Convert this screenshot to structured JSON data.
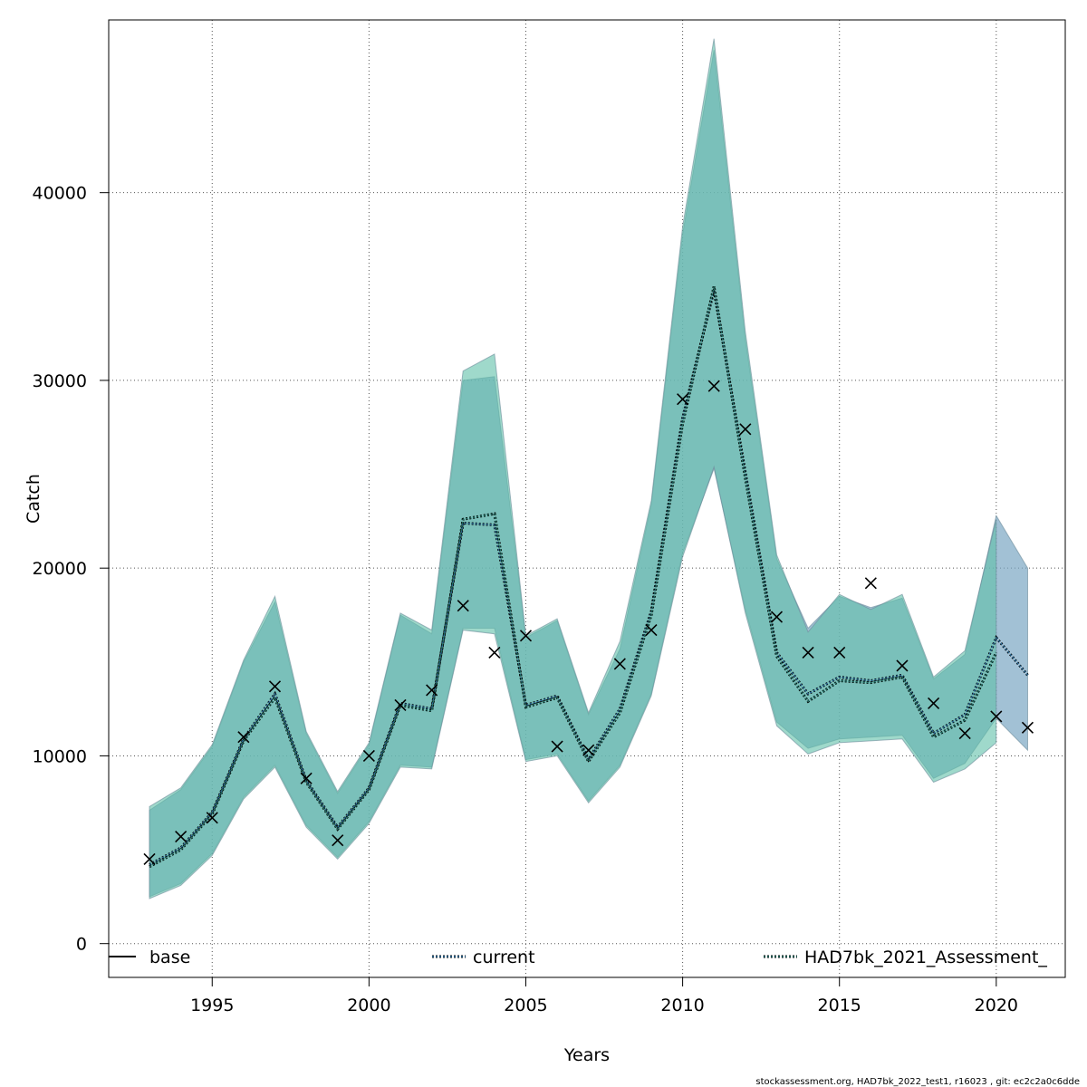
{
  "chart_data": {
    "type": "line",
    "xlabel": "Years",
    "ylabel": "Catch",
    "xlim": [
      1991.7,
      2022.2
    ],
    "ylim": [
      -1800,
      49200
    ],
    "x_ticks": [
      1995,
      2000,
      2005,
      2010,
      2015,
      2020
    ],
    "y_ticks": [
      0,
      10000,
      20000,
      30000,
      40000
    ],
    "grid": true,
    "legend_placement": "bottom",
    "colors": {
      "base": "#000000",
      "current": "#2a6e9c",
      "assessment": "#1f6f64",
      "band_current": "#7ba6c3",
      "band_assessment": "#5fbfa8",
      "band_overlap": "#72b5b5",
      "observed": "#000000"
    },
    "series": [
      {
        "name": "current",
        "x": [
          1993,
          1994,
          1995,
          1996,
          1997,
          1998,
          1999,
          2000,
          2001,
          2002,
          2003,
          2004,
          2005,
          2006,
          2007,
          2008,
          2009,
          2010,
          2011,
          2012,
          2013,
          2014,
          2015,
          2016,
          2017,
          2018,
          2019,
          2020,
          2021
        ],
        "values": [
          4200,
          5100,
          7000,
          10900,
          13300,
          8700,
          6200,
          8300,
          12800,
          12500,
          22400,
          22300,
          12700,
          13200,
          9800,
          12500,
          17700,
          28000,
          34800,
          25100,
          15500,
          13300,
          14200,
          14000,
          14300,
          11200,
          12200,
          16300,
          14300
        ],
        "lower": [
          2500,
          3200,
          4800,
          7800,
          9500,
          6300,
          4600,
          6500,
          9500,
          9400,
          16800,
          16800,
          9800,
          10100,
          7600,
          9500,
          13300,
          20800,
          25300,
          17800,
          11800,
          10400,
          10900,
          11000,
          11100,
          8800,
          9600,
          12000,
          10300
        ],
        "upper": [
          7100,
          8200,
          10500,
          15000,
          18200,
          11200,
          8000,
          10600,
          17500,
          16500,
          30000,
          30200,
          16300,
          17200,
          12200,
          15700,
          23400,
          37800,
          47600,
          32200,
          20500,
          16800,
          18500,
          17900,
          18400,
          14100,
          15400,
          22800,
          20000
        ]
      },
      {
        "name": "HAD7bk_2021_Assessment_",
        "x": [
          1993,
          1994,
          1995,
          1996,
          1997,
          1998,
          1999,
          2000,
          2001,
          2002,
          2003,
          2004,
          2005,
          2006,
          2007,
          2008,
          2009,
          2010,
          2011,
          2012,
          2013,
          2014,
          2015,
          2016,
          2017,
          2018,
          2019,
          2020
        ],
        "values": [
          4100,
          5000,
          6900,
          10800,
          13100,
          8600,
          6100,
          8200,
          12700,
          12400,
          22600,
          22900,
          12600,
          13100,
          9700,
          12300,
          17500,
          27700,
          35000,
          24800,
          15300,
          12900,
          14000,
          13900,
          14200,
          11000,
          11900,
          15500
        ],
        "lower": [
          2400,
          3100,
          4700,
          7700,
          9400,
          6200,
          4500,
          6400,
          9400,
          9300,
          16700,
          16500,
          9700,
          10000,
          7500,
          9400,
          13200,
          20600,
          25400,
          17600,
          11600,
          10100,
          10700,
          10800,
          10900,
          8600,
          9300,
          10700
        ],
        "upper": [
          7300,
          8300,
          10600,
          15100,
          18500,
          11300,
          8100,
          10700,
          17600,
          16700,
          30500,
          31400,
          16400,
          17300,
          12300,
          16100,
          23600,
          38200,
          48200,
          32600,
          20700,
          16600,
          18600,
          17800,
          18600,
          14200,
          15600,
          22600
        ]
      }
    ],
    "observed": {
      "x": [
        1993,
        1994,
        1995,
        1996,
        1997,
        1998,
        1999,
        2000,
        2001,
        2002,
        2003,
        2004,
        2005,
        2006,
        2007,
        2008,
        2009,
        2010,
        2011,
        2012,
        2013,
        2014,
        2015,
        2016,
        2017,
        2018,
        2019,
        2020,
        2021
      ],
      "values": [
        4500,
        5700,
        6700,
        11000,
        13700,
        8800,
        5500,
        10000,
        12700,
        13500,
        18000,
        15500,
        16400,
        10500,
        10300,
        14900,
        16700,
        29000,
        29700,
        27400,
        17400,
        15500,
        15500,
        19200,
        14800,
        12800,
        11200,
        12100,
        11500
      ]
    },
    "legend": [
      {
        "label": "base",
        "style": "solid"
      },
      {
        "label": "current",
        "style": "dotted"
      },
      {
        "label": "HAD7bk_2021_Assessment_",
        "style": "dotted"
      }
    ]
  },
  "footer": {
    "text": "stockassessment.org, HAD7bk_2022_test1, r16023 , git: ec2c2a0c6dde"
  }
}
